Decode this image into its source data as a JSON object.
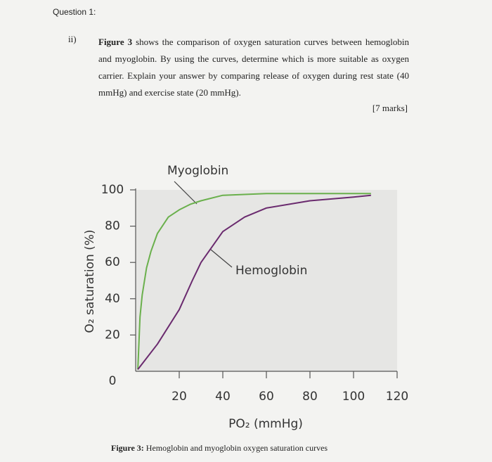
{
  "header": {
    "title": "Question 1:"
  },
  "question": {
    "number": "ii)",
    "lead": "Figure 3",
    "text": "shows the comparison of oxygen saturation curves between hemoglobin and myoglobin. By using the curves, determine which is more suitable as oxygen carrier. Explain your answer by comparing release of oxygen during rest state (40 mmHg) and exercise state (20 mmHg).",
    "marks": "[7 marks]"
  },
  "caption": {
    "label": "Figure 3:",
    "text": "Hemoglobin and myoglobin oxygen saturation curves"
  },
  "chart_data": {
    "type": "line",
    "x_label": "PO₂ (mmHg)",
    "y_label": "O₂ saturation (%)",
    "xlim": [
      0,
      120
    ],
    "ylim": [
      0,
      100
    ],
    "xticks": [
      20,
      40,
      60,
      80,
      100,
      120
    ],
    "yticks": [
      0,
      20,
      40,
      60,
      80,
      100
    ],
    "series": [
      {
        "name": "Myoglobin",
        "color": "#6ab04c",
        "x": [
          1,
          2,
          3,
          5,
          7,
          10,
          15,
          20,
          25,
          30,
          40,
          60,
          80,
          100,
          108
        ],
        "values": [
          1,
          30,
          42,
          57,
          66,
          76,
          85,
          89,
          92,
          94,
          97,
          98,
          98,
          98,
          98
        ]
      },
      {
        "name": "Hemoglobin",
        "color": "#6a2a6e",
        "x": [
          1,
          10,
          20,
          26,
          30,
          40,
          50,
          60,
          80,
          100,
          108
        ],
        "values": [
          1,
          15,
          34,
          50,
          60,
          77,
          85,
          90,
          94,
          96,
          97
        ]
      }
    ]
  }
}
